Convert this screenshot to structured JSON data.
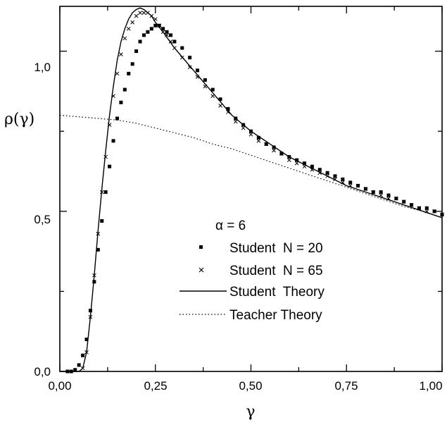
{
  "chart_data": {
    "type": "scatter",
    "xlabel": "γ",
    "ylabel": "ρ(γ)",
    "xlim": [
      0,
      1
    ],
    "ylim": [
      0,
      1.14
    ],
    "x_ticks": [
      "0,00",
      "0,25",
      "0,50",
      "0,75",
      "1,00"
    ],
    "y_ticks": [
      "0,0",
      "0,5",
      "1,0"
    ],
    "legend_title": "α = 6",
    "legend_placement": "lower-right",
    "series": [
      {
        "name": "Student  N = 20",
        "style": "square-markers",
        "color": "#000000",
        "points": [
          [
            0.02,
            0.0
          ],
          [
            0.03,
            0.0
          ],
          [
            0.04,
            0.005
          ],
          [
            0.05,
            0.02
          ],
          [
            0.06,
            0.05
          ],
          [
            0.07,
            0.1
          ],
          [
            0.08,
            0.19
          ],
          [
            0.09,
            0.28
          ],
          [
            0.1,
            0.38
          ],
          [
            0.11,
            0.47
          ],
          [
            0.12,
            0.56
          ],
          [
            0.13,
            0.64
          ],
          [
            0.14,
            0.72
          ],
          [
            0.15,
            0.79
          ],
          [
            0.16,
            0.84
          ],
          [
            0.17,
            0.88
          ],
          [
            0.18,
            0.93
          ],
          [
            0.19,
            0.96
          ],
          [
            0.2,
            1.0
          ],
          [
            0.21,
            1.03
          ],
          [
            0.22,
            1.05
          ],
          [
            0.23,
            1.06
          ],
          [
            0.24,
            1.07
          ],
          [
            0.25,
            1.08
          ],
          [
            0.26,
            1.08
          ],
          [
            0.27,
            1.07
          ],
          [
            0.28,
            1.06
          ],
          [
            0.29,
            1.05
          ],
          [
            0.3,
            1.03
          ],
          [
            0.32,
            1.01
          ],
          [
            0.34,
            0.98
          ],
          [
            0.36,
            0.94
          ],
          [
            0.38,
            0.91
          ],
          [
            0.4,
            0.88
          ],
          [
            0.42,
            0.85
          ],
          [
            0.44,
            0.82
          ],
          [
            0.46,
            0.79
          ],
          [
            0.48,
            0.77
          ],
          [
            0.5,
            0.75
          ],
          [
            0.52,
            0.73
          ],
          [
            0.54,
            0.71
          ],
          [
            0.56,
            0.7
          ],
          [
            0.58,
            0.68
          ],
          [
            0.6,
            0.67
          ],
          [
            0.62,
            0.66
          ],
          [
            0.64,
            0.65
          ],
          [
            0.66,
            0.64
          ],
          [
            0.68,
            0.63
          ],
          [
            0.7,
            0.62
          ],
          [
            0.72,
            0.61
          ],
          [
            0.74,
            0.6
          ],
          [
            0.76,
            0.59
          ],
          [
            0.78,
            0.58
          ],
          [
            0.8,
            0.57
          ],
          [
            0.82,
            0.56
          ],
          [
            0.84,
            0.56
          ],
          [
            0.86,
            0.55
          ],
          [
            0.88,
            0.54
          ],
          [
            0.9,
            0.53
          ],
          [
            0.92,
            0.52
          ],
          [
            0.94,
            0.51
          ],
          [
            0.96,
            0.51
          ],
          [
            0.98,
            0.5
          ],
          [
            1.0,
            0.49
          ]
        ]
      },
      {
        "name": "Student  N = 65",
        "style": "x-markers",
        "color": "#000000",
        "points": [
          [
            0.06,
            0.01
          ],
          [
            0.07,
            0.06
          ],
          [
            0.08,
            0.17
          ],
          [
            0.09,
            0.3
          ],
          [
            0.1,
            0.43
          ],
          [
            0.11,
            0.56
          ],
          [
            0.12,
            0.67
          ],
          [
            0.13,
            0.77
          ],
          [
            0.14,
            0.86
          ],
          [
            0.15,
            0.93
          ],
          [
            0.16,
            0.99
          ],
          [
            0.17,
            1.04
          ],
          [
            0.18,
            1.07
          ],
          [
            0.19,
            1.09
          ],
          [
            0.2,
            1.11
          ],
          [
            0.21,
            1.12
          ],
          [
            0.22,
            1.12
          ],
          [
            0.23,
            1.12
          ],
          [
            0.24,
            1.11
          ],
          [
            0.25,
            1.1
          ],
          [
            0.26,
            1.08
          ],
          [
            0.27,
            1.06
          ],
          [
            0.28,
            1.05
          ],
          [
            0.29,
            1.03
          ],
          [
            0.3,
            1.01
          ],
          [
            0.32,
            0.98
          ],
          [
            0.34,
            0.95
          ],
          [
            0.36,
            0.92
          ],
          [
            0.38,
            0.89
          ],
          [
            0.4,
            0.86
          ],
          [
            0.42,
            0.83
          ],
          [
            0.44,
            0.81
          ],
          [
            0.46,
            0.78
          ],
          [
            0.48,
            0.76
          ],
          [
            0.5,
            0.74
          ],
          [
            0.52,
            0.72
          ],
          [
            0.54,
            0.71
          ],
          [
            0.56,
            0.69
          ],
          [
            0.58,
            0.68
          ],
          [
            0.6,
            0.66
          ],
          [
            0.62,
            0.65
          ],
          [
            0.64,
            0.64
          ],
          [
            0.66,
            0.63
          ],
          [
            0.68,
            0.62
          ],
          [
            0.7,
            0.61
          ],
          [
            0.72,
            0.6
          ],
          [
            0.74,
            0.59
          ],
          [
            0.76,
            0.58
          ],
          [
            0.78,
            0.58
          ],
          [
            0.8,
            0.57
          ],
          [
            0.82,
            0.56
          ],
          [
            0.84,
            0.55
          ],
          [
            0.86,
            0.54
          ],
          [
            0.88,
            0.54
          ],
          [
            0.9,
            0.53
          ],
          [
            0.92,
            0.52
          ],
          [
            0.94,
            0.51
          ],
          [
            0.96,
            0.5
          ],
          [
            0.98,
            0.5
          ],
          [
            1.0,
            0.49
          ]
        ]
      },
      {
        "name": "Student  Theory",
        "style": "solid-line",
        "color": "#000000",
        "points": [
          [
            0.0,
            0.0
          ],
          [
            0.05,
            0.0
          ],
          [
            0.06,
            0.01
          ],
          [
            0.07,
            0.06
          ],
          [
            0.08,
            0.17
          ],
          [
            0.09,
            0.3
          ],
          [
            0.1,
            0.44
          ],
          [
            0.11,
            0.57
          ],
          [
            0.12,
            0.69
          ],
          [
            0.13,
            0.8
          ],
          [
            0.14,
            0.89
          ],
          [
            0.15,
            0.97
          ],
          [
            0.16,
            1.03
          ],
          [
            0.17,
            1.07
          ],
          [
            0.18,
            1.1
          ],
          [
            0.19,
            1.12
          ],
          [
            0.2,
            1.13
          ],
          [
            0.21,
            1.135
          ],
          [
            0.22,
            1.13
          ],
          [
            0.23,
            1.12
          ],
          [
            0.24,
            1.11
          ],
          [
            0.25,
            1.09
          ],
          [
            0.27,
            1.06
          ],
          [
            0.3,
            1.01
          ],
          [
            0.35,
            0.94
          ],
          [
            0.4,
            0.87
          ],
          [
            0.45,
            0.8
          ],
          [
            0.5,
            0.75
          ],
          [
            0.55,
            0.71
          ],
          [
            0.6,
            0.67
          ],
          [
            0.65,
            0.64
          ],
          [
            0.7,
            0.61
          ],
          [
            0.75,
            0.58
          ],
          [
            0.8,
            0.56
          ],
          [
            0.85,
            0.54
          ],
          [
            0.9,
            0.52
          ],
          [
            0.95,
            0.5
          ],
          [
            1.0,
            0.48
          ]
        ]
      },
      {
        "name": "Teacher Theory",
        "style": "dotted-line",
        "color": "#000000",
        "points": [
          [
            0.0,
            0.8
          ],
          [
            0.05,
            0.795
          ],
          [
            0.1,
            0.79
          ],
          [
            0.15,
            0.785
          ],
          [
            0.2,
            0.775
          ],
          [
            0.25,
            0.76
          ],
          [
            0.3,
            0.745
          ],
          [
            0.35,
            0.73
          ],
          [
            0.4,
            0.71
          ],
          [
            0.45,
            0.695
          ],
          [
            0.5,
            0.675
          ],
          [
            0.55,
            0.655
          ],
          [
            0.6,
            0.635
          ],
          [
            0.65,
            0.615
          ],
          [
            0.7,
            0.595
          ],
          [
            0.75,
            0.575
          ],
          [
            0.8,
            0.555
          ],
          [
            0.85,
            0.535
          ],
          [
            0.9,
            0.515
          ],
          [
            0.95,
            0.5
          ],
          [
            1.0,
            0.48
          ]
        ]
      }
    ]
  }
}
